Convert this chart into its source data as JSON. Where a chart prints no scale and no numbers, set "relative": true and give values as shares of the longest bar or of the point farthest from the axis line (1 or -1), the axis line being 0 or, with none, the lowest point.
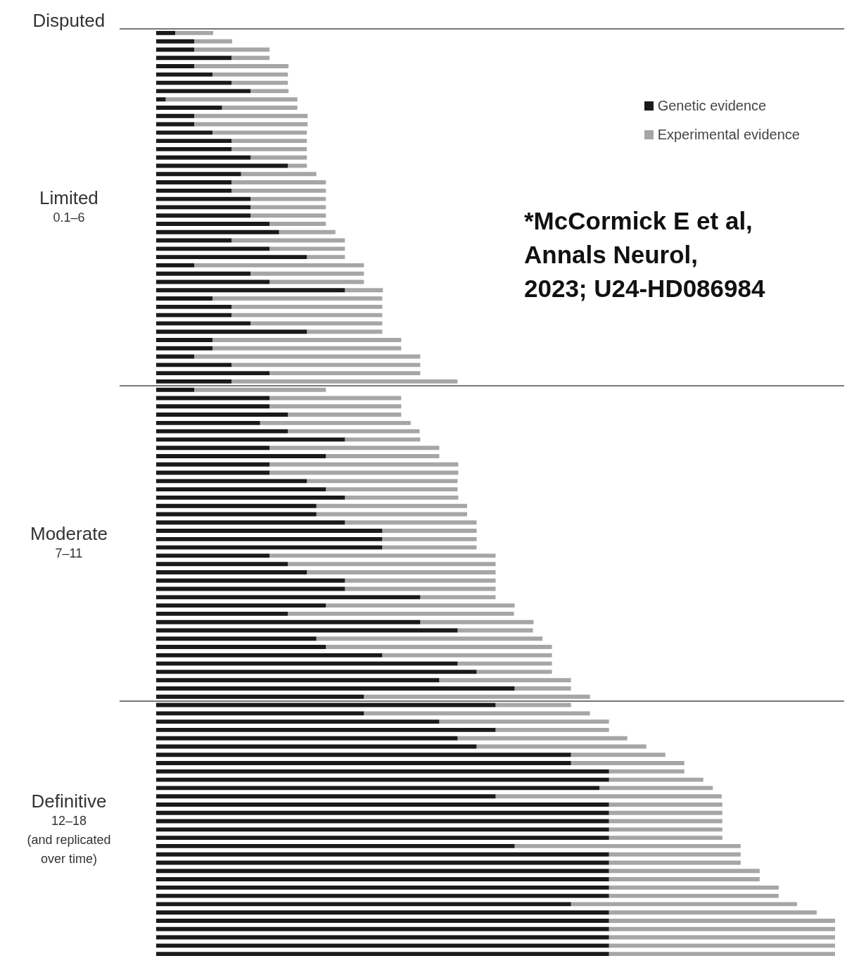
{
  "chart_data": {
    "type": "bar",
    "orientation": "horizontal",
    "stacked": true,
    "relative": true,
    "legend": "top right",
    "annotations": [
      "Disputed",
      "Limited\n0.1–6",
      "Moderate\n7–11",
      "Definitive\n12–18\n(and replicated\nover time)",
      "*McCormick E et al,\nAnnals Neurol,\n2023; U24-HD086984"
    ],
    "categories": [
      null,
      null,
      null,
      null,
      null,
      null,
      null,
      null,
      null,
      null,
      null,
      null,
      null,
      null,
      null,
      null,
      null,
      null,
      null,
      null,
      null,
      null,
      null,
      null,
      null,
      null,
      null,
      null,
      null,
      null,
      null,
      null,
      null,
      null,
      null,
      null,
      null,
      null,
      null,
      null,
      null,
      null,
      null,
      null,
      null,
      null,
      null,
      null,
      null,
      null,
      null,
      null,
      null,
      null,
      null,
      null,
      null,
      null,
      null,
      null,
      null,
      null,
      null,
      null,
      null,
      null,
      null,
      null,
      null,
      null,
      null,
      null,
      null,
      null,
      null,
      null,
      null,
      null,
      null,
      null,
      null,
      null,
      null,
      null,
      null,
      null,
      null,
      null,
      null,
      null,
      null,
      null,
      null,
      null,
      null,
      null,
      null,
      null,
      null,
      null,
      null,
      null,
      null,
      null,
      null,
      null,
      null,
      null,
      null,
      null,
      null,
      null
    ],
    "series": [
      {
        "name": "Genetic evidence",
        "color": "#1a1a1a",
        "values": [
          0.028,
          0.056,
          0.056,
          0.111,
          0.056,
          0.083,
          0.111,
          0.139,
          0.014,
          0.097,
          0.056,
          0.056,
          0.083,
          0.111,
          0.111,
          0.139,
          0.194,
          0.125,
          0.111,
          0.111,
          0.139,
          0.139,
          0.139,
          0.167,
          0.181,
          0.111,
          0.167,
          0.222,
          0.056,
          0.139,
          0.167,
          0.278,
          0.083,
          0.111,
          0.111,
          0.139,
          0.222,
          0.083,
          0.083,
          0.056,
          0.111,
          0.167,
          0.111,
          0.056,
          0.167,
          0.167,
          0.194,
          0.153,
          0.194,
          0.278,
          0.167,
          0.25,
          0.167,
          0.167,
          0.222,
          0.25,
          0.278,
          0.236,
          0.236,
          0.278,
          0.333,
          0.333,
          0.333,
          0.167,
          0.194,
          0.222,
          0.278,
          0.278,
          0.389,
          0.25,
          0.194,
          0.389,
          0.444,
          0.236,
          0.25,
          0.333,
          0.444,
          0.472,
          0.417,
          0.528,
          0.306,
          0.5,
          0.306,
          0.417,
          0.5,
          0.444,
          0.472,
          0.611,
          0.611,
          0.667,
          0.667,
          0.653,
          0.5,
          0.667,
          0.667,
          0.667,
          0.667,
          0.667,
          0.528,
          0.667,
          0.667,
          0.667,
          0.667,
          0.667,
          0.667,
          0.611,
          0.667,
          0.667,
          0.667,
          0.667,
          0.667,
          0.667
        ]
      },
      {
        "name": "Experimental evidence",
        "color": "#a6a6a6",
        "values": [
          0.056,
          0.056,
          0.111,
          0.056,
          0.139,
          0.111,
          0.083,
          0.056,
          0.194,
          0.111,
          0.167,
          0.167,
          0.139,
          0.111,
          0.111,
          0.083,
          0.028,
          0.111,
          0.139,
          0.139,
          0.111,
          0.111,
          0.111,
          0.083,
          0.083,
          0.167,
          0.111,
          0.056,
          0.25,
          0.167,
          0.139,
          0.056,
          0.25,
          0.222,
          0.222,
          0.194,
          0.111,
          0.278,
          0.278,
          0.333,
          0.278,
          0.222,
          0.333,
          0.194,
          0.194,
          0.194,
          0.167,
          0.222,
          0.194,
          0.111,
          0.25,
          0.167,
          0.278,
          0.278,
          0.222,
          0.194,
          0.167,
          0.222,
          0.222,
          0.194,
          0.139,
          0.139,
          0.139,
          0.333,
          0.306,
          0.278,
          0.222,
          0.222,
          0.111,
          0.278,
          0.333,
          0.167,
          0.111,
          0.333,
          0.333,
          0.25,
          0.139,
          0.111,
          0.194,
          0.083,
          0.333,
          0.111,
          0.333,
          0.25,
          0.167,
          0.25,
          0.25,
          0.139,
          0.167,
          0.111,
          0.139,
          0.167,
          0.333,
          0.167,
          0.167,
          0.167,
          0.167,
          0.167,
          0.333,
          0.194,
          0.194,
          0.222,
          0.222,
          0.25,
          0.25,
          0.333,
          0.306,
          0.333,
          0.333,
          0.333,
          0.333,
          0.333
        ]
      }
    ]
  }
}
